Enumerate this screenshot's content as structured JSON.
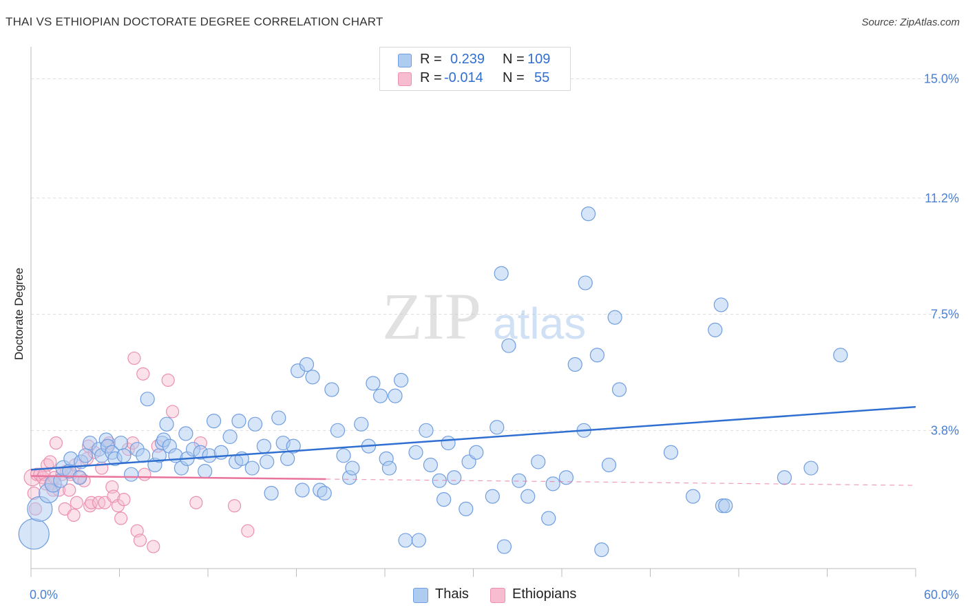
{
  "title": "THAI VS ETHIOPIAN DOCTORATE DEGREE CORRELATION CHART",
  "source": "Source: ZipAtlas.com",
  "watermark": {
    "zip": "ZIP",
    "atlas": "atlas"
  },
  "legend_box": {
    "rows": [
      {
        "r_label": "R =",
        "r_value": "0.239",
        "n_label": "N =",
        "n_value": "109"
      },
      {
        "r_label": "R =",
        "r_value": "-0.014",
        "n_label": "N =",
        "n_value": "55"
      }
    ]
  },
  "bottom_legend": [
    {
      "label": "Thais"
    },
    {
      "label": "Ethiopians"
    }
  ],
  "colors": {
    "thai_fill": "#aecbf0",
    "thai_stroke": "#6f9de0",
    "thai_line": "#2f6fd1",
    "eth_fill": "#f7bcd0",
    "eth_stroke": "#ec8fb0",
    "eth_line": "#e8739c",
    "axis_label": "#4a7fd4"
  },
  "chart_data": {
    "type": "scatter",
    "title": "THAI VS ETHIOPIAN DOCTORATE DEGREE CORRELATION CHART",
    "xlabel": "",
    "ylabel": "Doctorate Degree",
    "xlim": [
      0,
      60
    ],
    "ylim": [
      -0.6,
      15.8
    ],
    "x_tick_labels": [
      {
        "value": 0,
        "label": "0.0%"
      },
      {
        "value": 60,
        "label": "60.0%"
      }
    ],
    "y_tick_labels": [
      {
        "value": 3.8,
        "label": "3.8%"
      },
      {
        "value": 7.5,
        "label": "7.5%"
      },
      {
        "value": 11.2,
        "label": "11.2%"
      },
      {
        "value": 15.0,
        "label": "15.0%"
      }
    ],
    "grid": true,
    "legend_position": "top-center",
    "series": [
      {
        "name": "Thais",
        "r": 0.239,
        "n": 109,
        "trend": {
          "x0": 0,
          "y0": 2.55,
          "x1": 60,
          "y1": 4.55
        },
        "points": [
          [
            0.2,
            0.5,
            22
          ],
          [
            0.6,
            1.3,
            18
          ],
          [
            1.2,
            1.8,
            14
          ],
          [
            1.5,
            2.1,
            12
          ],
          [
            2.0,
            2.2,
            10
          ],
          [
            2.2,
            2.6,
            11
          ],
          [
            2.6,
            2.5,
            10
          ],
          [
            2.7,
            2.9,
            10
          ],
          [
            3.3,
            2.3,
            10
          ],
          [
            3.4,
            2.8,
            10
          ],
          [
            3.7,
            3.0,
            10
          ],
          [
            4.0,
            3.4,
            10
          ],
          [
            4.6,
            3.2,
            10
          ],
          [
            4.8,
            3.0,
            10
          ],
          [
            5.1,
            3.5,
            10
          ],
          [
            5.2,
            3.3,
            10
          ],
          [
            5.5,
            3.1,
            10
          ],
          [
            5.7,
            2.9,
            10
          ],
          [
            6.1,
            3.4,
            10
          ],
          [
            6.3,
            3.0,
            10
          ],
          [
            6.8,
            2.4,
            10
          ],
          [
            7.2,
            3.2,
            10
          ],
          [
            7.6,
            3.0,
            10
          ],
          [
            7.9,
            4.8,
            10
          ],
          [
            8.4,
            2.7,
            10
          ],
          [
            8.7,
            3.0,
            10
          ],
          [
            8.9,
            3.4,
            10
          ],
          [
            9.0,
            3.5,
            10
          ],
          [
            9.2,
            4.0,
            10
          ],
          [
            9.4,
            3.3,
            10
          ],
          [
            9.8,
            3.0,
            10
          ],
          [
            10.2,
            2.6,
            10
          ],
          [
            10.5,
            3.7,
            10
          ],
          [
            10.6,
            2.9,
            10
          ],
          [
            11.0,
            3.2,
            10
          ],
          [
            11.5,
            3.1,
            10
          ],
          [
            11.8,
            2.5,
            10
          ],
          [
            12.1,
            3.0,
            10
          ],
          [
            12.4,
            4.1,
            10
          ],
          [
            12.9,
            3.1,
            10
          ],
          [
            13.5,
            3.6,
            10
          ],
          [
            13.9,
            2.8,
            10
          ],
          [
            14.1,
            4.1,
            10
          ],
          [
            14.3,
            2.9,
            10
          ],
          [
            15.0,
            2.6,
            10
          ],
          [
            15.2,
            4.0,
            10
          ],
          [
            15.8,
            3.3,
            10
          ],
          [
            16.0,
            2.8,
            10
          ],
          [
            16.3,
            1.8,
            10
          ],
          [
            16.8,
            4.2,
            10
          ],
          [
            17.1,
            3.4,
            10
          ],
          [
            17.4,
            2.9,
            10
          ],
          [
            17.8,
            3.3,
            10
          ],
          [
            18.1,
            5.7,
            10
          ],
          [
            18.4,
            1.9,
            10
          ],
          [
            18.7,
            5.9,
            10
          ],
          [
            19.1,
            5.5,
            10
          ],
          [
            19.6,
            1.9,
            10
          ],
          [
            19.9,
            1.8,
            10
          ],
          [
            20.4,
            5.1,
            10
          ],
          [
            20.8,
            3.8,
            10
          ],
          [
            21.2,
            3.0,
            10
          ],
          [
            21.6,
            2.3,
            10
          ],
          [
            21.8,
            2.6,
            10
          ],
          [
            22.4,
            4.0,
            10
          ],
          [
            22.9,
            3.3,
            10
          ],
          [
            23.2,
            5.3,
            10
          ],
          [
            23.7,
            4.9,
            10
          ],
          [
            24.1,
            2.9,
            10
          ],
          [
            24.3,
            2.6,
            10
          ],
          [
            24.7,
            4.9,
            10
          ],
          [
            25.1,
            5.4,
            10
          ],
          [
            25.4,
            0.3,
            10
          ],
          [
            26.1,
            3.1,
            10
          ],
          [
            26.3,
            0.3,
            10
          ],
          [
            26.8,
            3.8,
            10
          ],
          [
            27.1,
            2.7,
            10
          ],
          [
            27.7,
            2.2,
            10
          ],
          [
            28.0,
            1.6,
            10
          ],
          [
            28.3,
            3.4,
            10
          ],
          [
            28.7,
            2.3,
            10
          ],
          [
            29.5,
            1.3,
            10
          ],
          [
            29.7,
            2.8,
            10
          ],
          [
            30.2,
            3.1,
            10
          ],
          [
            31.3,
            1.7,
            10
          ],
          [
            31.6,
            3.9,
            10
          ],
          [
            32.1,
            0.1,
            10
          ],
          [
            31.9,
            8.8,
            10
          ],
          [
            32.4,
            6.5,
            10
          ],
          [
            33.1,
            2.2,
            10
          ],
          [
            33.7,
            1.7,
            10
          ],
          [
            34.4,
            2.8,
            10
          ],
          [
            35.1,
            1.0,
            10
          ],
          [
            35.4,
            2.1,
            10
          ],
          [
            36.3,
            2.3,
            10
          ],
          [
            36.9,
            5.9,
            10
          ],
          [
            37.5,
            3.8,
            10
          ],
          [
            37.6,
            8.5,
            10
          ],
          [
            38.7,
            0.0,
            10
          ],
          [
            37.8,
            10.7,
            10
          ],
          [
            38.4,
            6.2,
            10
          ],
          [
            39.2,
            2.7,
            10
          ],
          [
            39.6,
            7.4,
            10
          ],
          [
            39.9,
            5.1,
            10
          ],
          [
            43.4,
            3.1,
            10
          ],
          [
            44.9,
            1.7,
            10
          ],
          [
            46.4,
            7.0,
            10
          ],
          [
            46.9,
            1.4,
            10
          ],
          [
            47.1,
            1.4,
            10
          ],
          [
            46.8,
            7.8,
            10
          ],
          [
            51.1,
            2.3,
            10
          ],
          [
            52.9,
            2.6,
            10
          ],
          [
            54.9,
            6.2,
            10
          ]
        ]
      },
      {
        "name": "Ethiopians",
        "r": -0.014,
        "n": 55,
        "trend": {
          "x0": 0,
          "y0": 2.35,
          "x1": 20,
          "y1": 2.25
        },
        "trend_dashed": {
          "x0": 20,
          "y0": 2.25,
          "x1": 60,
          "y1": 2.05
        },
        "points": [
          [
            0.1,
            2.3,
            12
          ],
          [
            0.2,
            1.8,
            9
          ],
          [
            0.3,
            1.3,
            9
          ],
          [
            0.4,
            2.4,
            9
          ],
          [
            0.6,
            2.4,
            9
          ],
          [
            0.8,
            2.3,
            9
          ],
          [
            0.9,
            2.4,
            9
          ],
          [
            1.0,
            2.1,
            9
          ],
          [
            1.1,
            2.7,
            9
          ],
          [
            1.3,
            2.8,
            9
          ],
          [
            1.4,
            2.1,
            9
          ],
          [
            1.5,
            1.9,
            9
          ],
          [
            1.6,
            2.3,
            9
          ],
          [
            1.7,
            3.4,
            9
          ],
          [
            1.9,
            1.9,
            9
          ],
          [
            2.1,
            2.4,
            9
          ],
          [
            2.3,
            1.3,
            9
          ],
          [
            2.4,
            2.5,
            9
          ],
          [
            2.6,
            1.9,
            9
          ],
          [
            2.7,
            2.4,
            9
          ],
          [
            2.9,
            1.1,
            9
          ],
          [
            3.0,
            2.7,
            9
          ],
          [
            3.1,
            1.5,
            9
          ],
          [
            3.3,
            2.3,
            9
          ],
          [
            3.6,
            2.2,
            9
          ],
          [
            3.8,
            2.9,
            9
          ],
          [
            3.9,
            3.3,
            9
          ],
          [
            4.0,
            1.4,
            9
          ],
          [
            4.1,
            1.5,
            9
          ],
          [
            4.3,
            3.1,
            9
          ],
          [
            4.6,
            1.5,
            9
          ],
          [
            4.8,
            2.6,
            9
          ],
          [
            5.0,
            1.5,
            9
          ],
          [
            5.2,
            3.3,
            9
          ],
          [
            5.3,
            3.4,
            9
          ],
          [
            5.5,
            2.0,
            9
          ],
          [
            5.6,
            1.7,
            9
          ],
          [
            5.9,
            1.4,
            9
          ],
          [
            6.1,
            1.0,
            9
          ],
          [
            6.3,
            1.6,
            9
          ],
          [
            6.6,
            3.2,
            9
          ],
          [
            6.9,
            3.4,
            9
          ],
          [
            7.0,
            6.1,
            9
          ],
          [
            7.2,
            0.6,
            9
          ],
          [
            7.4,
            0.3,
            9
          ],
          [
            7.6,
            5.6,
            9
          ],
          [
            7.7,
            2.4,
            9
          ],
          [
            8.3,
            0.1,
            9
          ],
          [
            8.6,
            3.3,
            9
          ],
          [
            9.3,
            5.4,
            9
          ],
          [
            9.6,
            4.4,
            9
          ],
          [
            11.2,
            1.5,
            9
          ],
          [
            11.5,
            3.4,
            9
          ],
          [
            13.8,
            1.4,
            9
          ],
          [
            14.7,
            0.6,
            9
          ]
        ]
      }
    ]
  }
}
